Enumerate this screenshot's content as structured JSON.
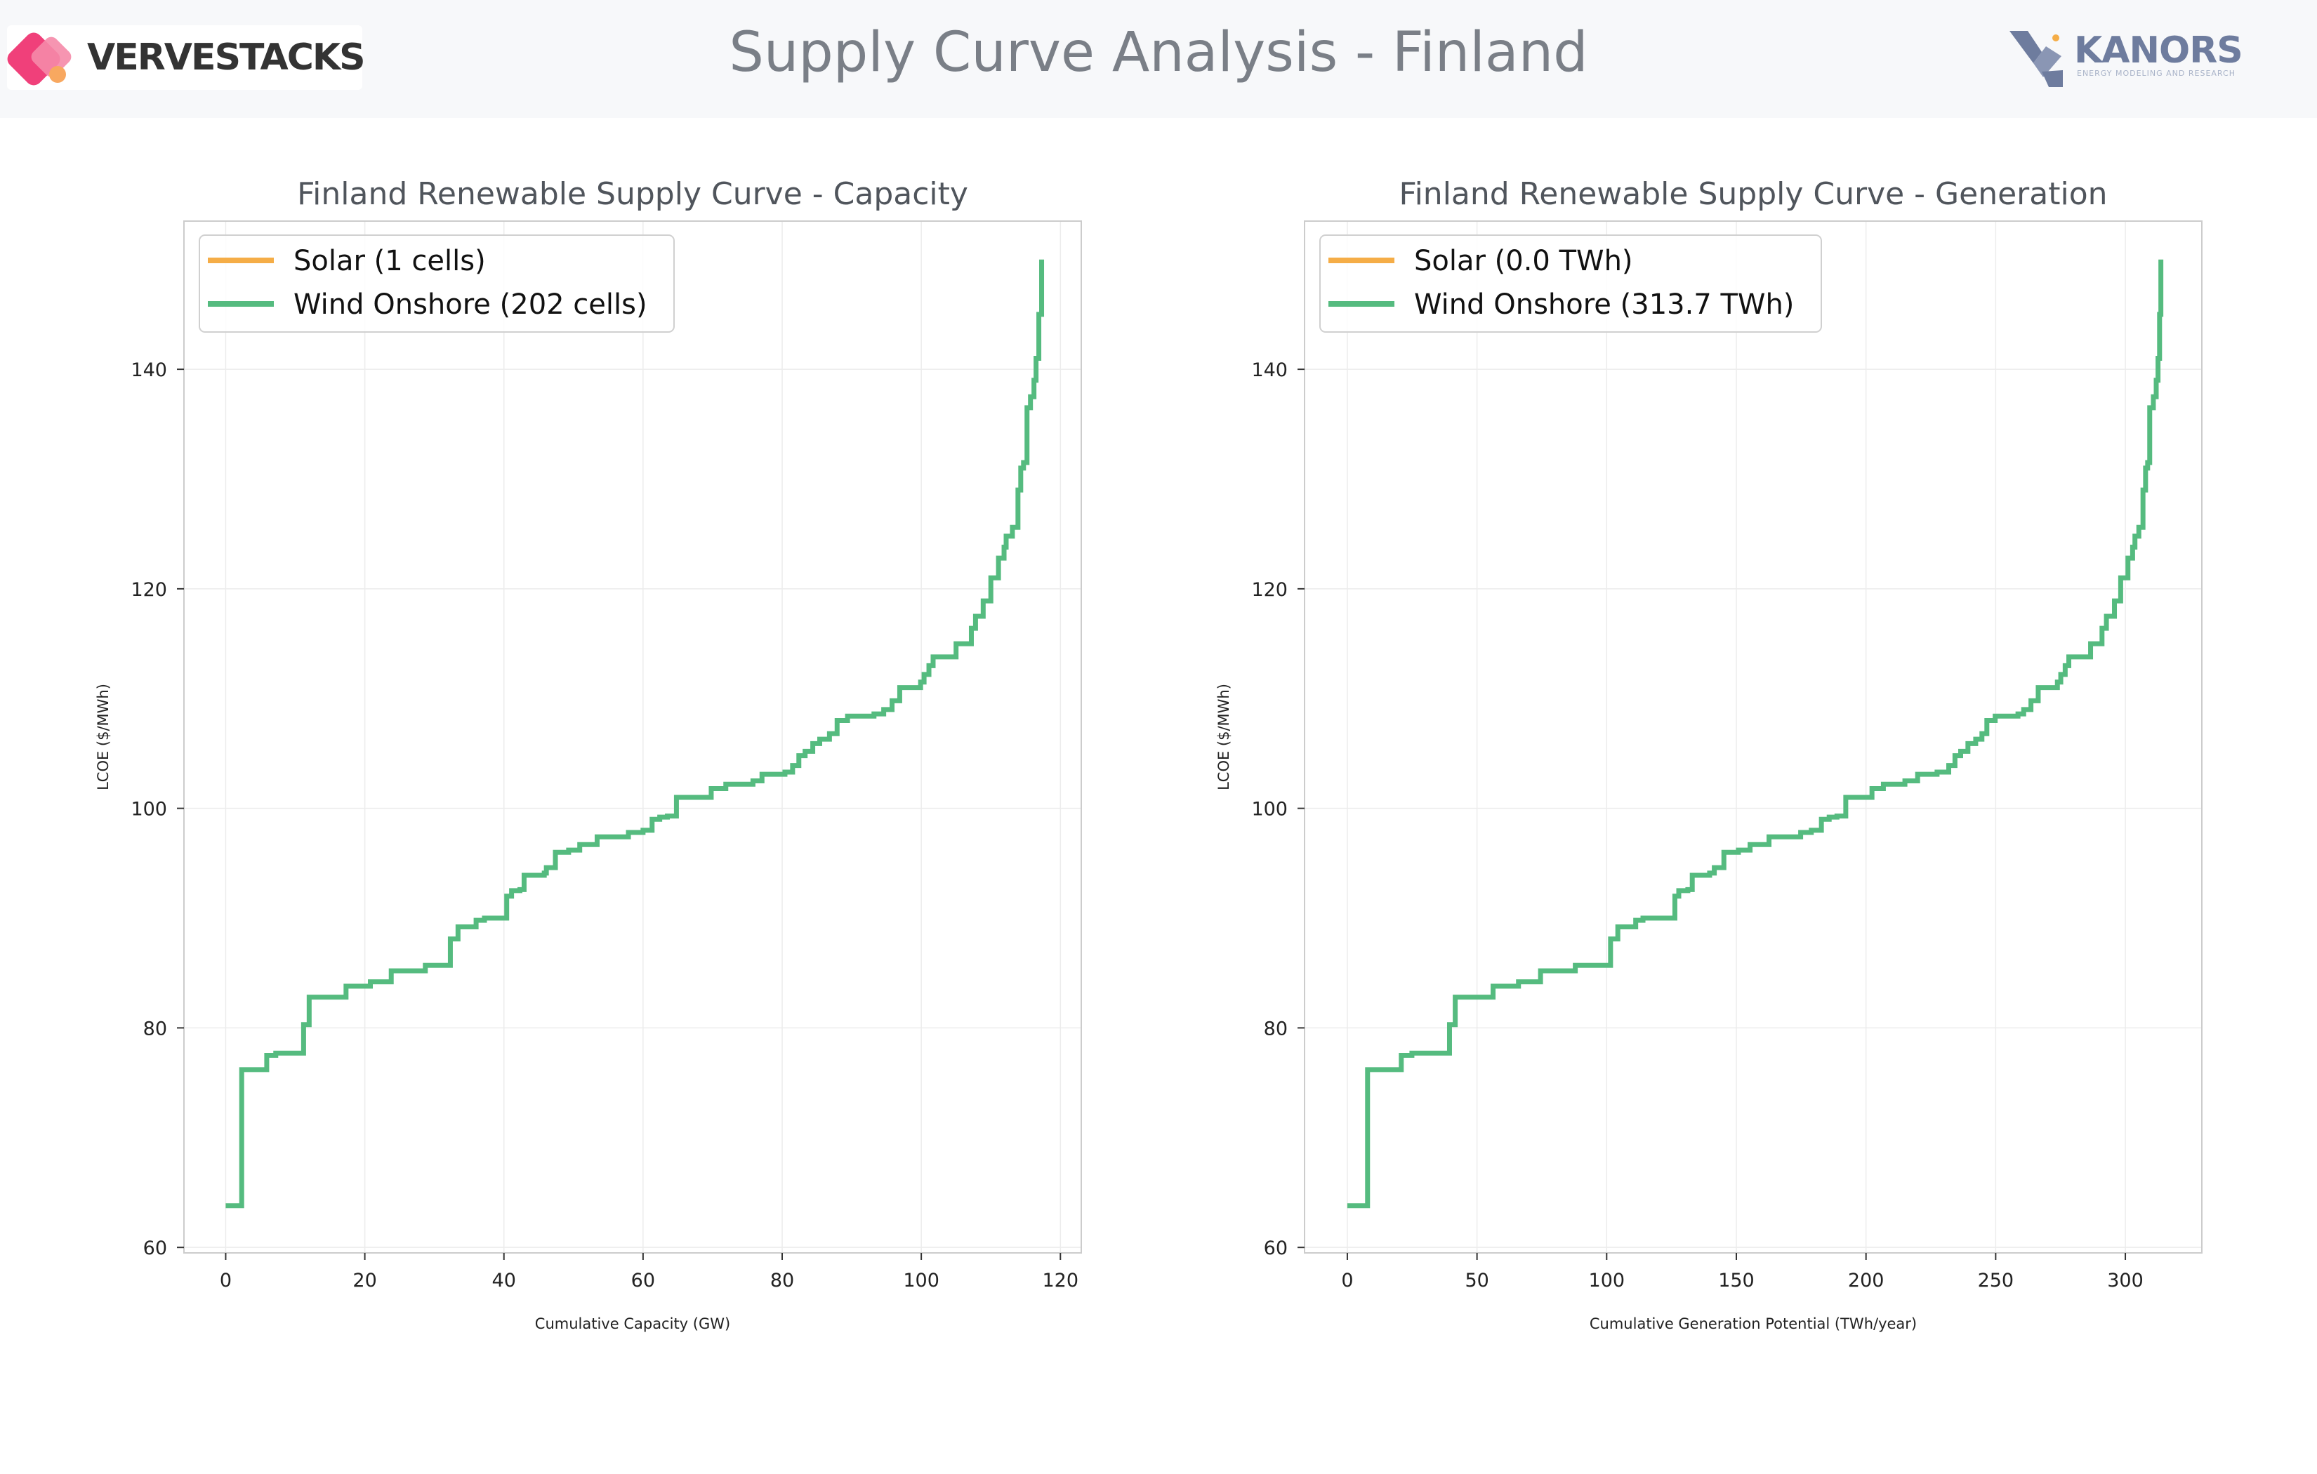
{
  "header": {
    "title": "Supply Curve Analysis - Finland",
    "logo_left_text": "VERVESTACKS",
    "logo_right_text": "KANORS",
    "logo_right_tagline": "ENERGY MODELING AND RESEARCH"
  },
  "colors": {
    "solar": "#f5ad47",
    "wind_onshore": "#55bb7f",
    "grid": "#ececec",
    "axis": "#cccccc",
    "title_text": "#50555c",
    "header_bg": "#f7f8fa"
  },
  "chart_data": [
    {
      "type": "line",
      "title": "Finland Renewable Supply Curve - Capacity",
      "xlabel": "Cumulative Capacity (GW)",
      "ylabel": "LCOE ($/MWh)",
      "xlim": [
        -6,
        123
      ],
      "ylim": [
        59.5,
        153.5
      ],
      "xticks": [
        0,
        20,
        40,
        60,
        80,
        100,
        120
      ],
      "yticks": [
        60,
        80,
        100,
        120,
        140
      ],
      "grid": true,
      "legend_position": "top-left",
      "series": [
        {
          "name": "Solar (1 cells)",
          "color": "#f5ad47",
          "step": true,
          "x": [
            0,
            0.02
          ],
          "y": [
            63.8,
            63.8
          ]
        },
        {
          "name": "Wind Onshore (202 cells)",
          "color": "#55bb7f",
          "step": true,
          "x": [
            0,
            2.3,
            5.9,
            7.2,
            11.2,
            12.0,
            17.3,
            20.8,
            23.8,
            28.7,
            32.3,
            33.4,
            36.0,
            37.2,
            40.4,
            41.1,
            42.3,
            42.9,
            45.8,
            46.1,
            47.4,
            49.3,
            50.9,
            53.4,
            57.9,
            60.0,
            61.3,
            62.4,
            63.5,
            64.8,
            69.8,
            71.9,
            75.8,
            77.1,
            80.4,
            81.5,
            82.4,
            83.3,
            84.4,
            85.4,
            86.8,
            87.9,
            89.4,
            93.2,
            94.6,
            95.8,
            96.9,
            99.9,
            100.4,
            101.1,
            101.7,
            105.0,
            107.2,
            107.8,
            108.9,
            110.0,
            111.1,
            111.9,
            112.2,
            113.1,
            113.9,
            114.3,
            114.7,
            115.2,
            115.7,
            116.2,
            116.5,
            116.9,
            117.3
          ],
          "y": [
            63.8,
            76.2,
            77.5,
            77.7,
            80.3,
            82.8,
            83.8,
            84.2,
            85.2,
            85.7,
            88.1,
            89.2,
            89.8,
            90.0,
            92.0,
            92.5,
            92.6,
            93.9,
            94.1,
            94.6,
            96.0,
            96.2,
            96.7,
            97.4,
            97.8,
            98.0,
            99.0,
            99.2,
            99.3,
            101.0,
            101.8,
            102.2,
            102.5,
            103.1,
            103.3,
            103.9,
            104.8,
            105.2,
            105.9,
            106.3,
            106.8,
            108.0,
            108.4,
            108.6,
            109.0,
            109.8,
            111.0,
            111.5,
            112.2,
            113.0,
            113.8,
            115.0,
            116.4,
            117.5,
            118.9,
            121.0,
            122.8,
            123.8,
            124.8,
            125.6,
            129.0,
            131.0,
            131.5,
            136.5,
            137.5,
            139.0,
            141.0,
            145.0,
            150.0
          ]
        }
      ]
    },
    {
      "type": "line",
      "title": "Finland Renewable Supply Curve - Generation",
      "xlabel": "Cumulative Generation Potential (TWh/year)",
      "ylabel": "LCOE ($/MWh)",
      "xlim": [
        -16.5,
        329.5
      ],
      "ylim": [
        59.5,
        153.5
      ],
      "xticks": [
        0,
        50,
        100,
        150,
        200,
        250,
        300
      ],
      "yticks": [
        60,
        80,
        100,
        120,
        140
      ],
      "grid": true,
      "legend_position": "top-left",
      "series": [
        {
          "name": "Solar (0.0 TWh)",
          "color": "#f5ad47",
          "step": true,
          "x": [
            0,
            0.05
          ],
          "y": [
            63.8,
            63.8
          ]
        },
        {
          "name": "Wind Onshore (313.7 TWh)",
          "color": "#55bb7f",
          "step": true,
          "x": [
            0,
            7.8,
            20.8,
            24.9,
            39.4,
            41.6,
            56.2,
            66.0,
            74.5,
            87.9,
            101.5,
            104.3,
            111.2,
            114.0,
            126.3,
            127.8,
            131.3,
            133.0,
            139.7,
            141.5,
            145.2,
            150.8,
            155.3,
            162.6,
            174.8,
            178.9,
            182.8,
            185.8,
            188.8,
            192.2,
            202.3,
            206.7,
            215.0,
            219.9,
            227.4,
            231.9,
            234.3,
            236.5,
            239.3,
            242.3,
            244.7,
            246.6,
            249.8,
            258.6,
            260.8,
            263.6,
            266.4,
            273.8,
            275.1,
            276.8,
            278.2,
            286.6,
            291.0,
            292.7,
            295.8,
            298.2,
            301.0,
            302.8,
            303.7,
            305.2,
            306.8,
            307.8,
            308.6,
            309.4,
            310.8,
            311.9,
            312.6,
            313.2,
            313.7
          ],
          "y": [
            63.8,
            76.2,
            77.5,
            77.7,
            80.3,
            82.8,
            83.8,
            84.2,
            85.2,
            85.7,
            88.1,
            89.2,
            89.8,
            90.0,
            92.0,
            92.5,
            92.6,
            93.9,
            94.1,
            94.6,
            96.0,
            96.2,
            96.7,
            97.4,
            97.8,
            98.0,
            99.0,
            99.2,
            99.3,
            101.0,
            101.8,
            102.2,
            102.5,
            103.1,
            103.3,
            103.9,
            104.8,
            105.2,
            105.9,
            106.3,
            106.8,
            108.0,
            108.4,
            108.6,
            109.0,
            109.8,
            111.0,
            111.5,
            112.2,
            113.0,
            113.8,
            115.0,
            116.4,
            117.5,
            118.9,
            121.0,
            122.8,
            123.8,
            124.8,
            125.6,
            129.0,
            131.0,
            131.5,
            136.5,
            137.5,
            139.0,
            141.0,
            145.0,
            150.0
          ]
        }
      ]
    }
  ]
}
